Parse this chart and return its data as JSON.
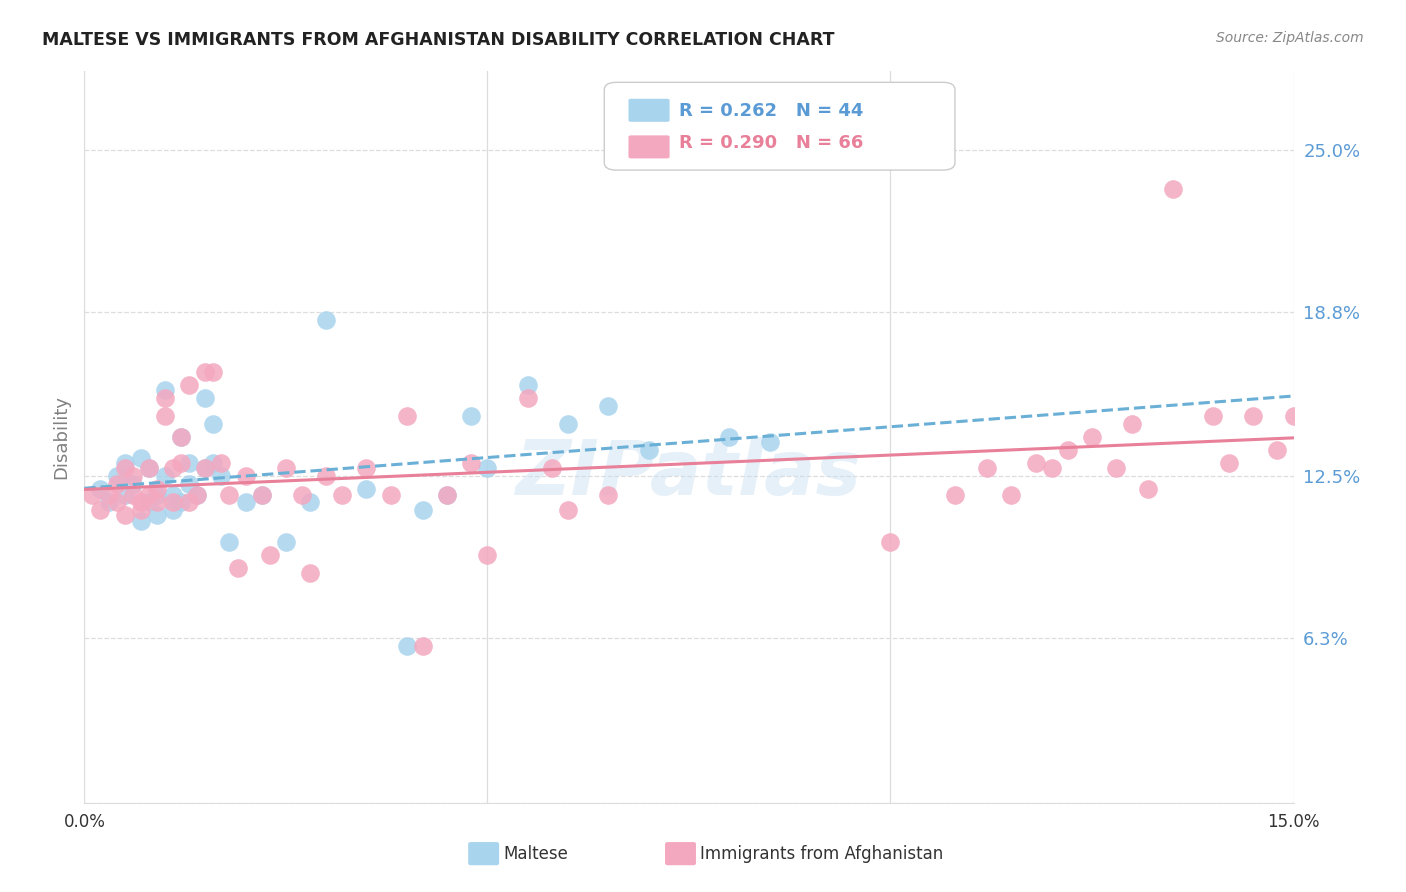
{
  "title": "MALTESE VS IMMIGRANTS FROM AFGHANISTAN DISABILITY CORRELATION CHART",
  "source": "Source: ZipAtlas.com",
  "ylabel": "Disability",
  "ytick_labels": [
    "25.0%",
    "18.8%",
    "12.5%",
    "6.3%"
  ],
  "ytick_values": [
    0.25,
    0.188,
    0.125,
    0.063
  ],
  "xlim": [
    0.0,
    0.15
  ],
  "ylim": [
    0.0,
    0.28
  ],
  "legend1_r": "0.262",
  "legend1_n": "44",
  "legend2_r": "0.290",
  "legend2_n": "66",
  "legend_label1": "Maltese",
  "legend_label2": "Immigrants from Afghanistan",
  "color_blue": "#a8d4ee",
  "color_pink": "#f4a8bf",
  "color_blue_line": "#6aafd6",
  "color_pink_line": "#e8809a",
  "color_blue_text": "#5b9bd5",
  "watermark": "ZIPatlas",
  "maltese_x": [
    0.002,
    0.003,
    0.004,
    0.005,
    0.005,
    0.006,
    0.007,
    0.007,
    0.008,
    0.008,
    0.009,
    0.009,
    0.01,
    0.01,
    0.011,
    0.011,
    0.012,
    0.012,
    0.013,
    0.013,
    0.014,
    0.015,
    0.015,
    0.016,
    0.016,
    0.017,
    0.018,
    0.02,
    0.022,
    0.025,
    0.028,
    0.03,
    0.035,
    0.04,
    0.042,
    0.045,
    0.048,
    0.05,
    0.055,
    0.06,
    0.065,
    0.07,
    0.08,
    0.085
  ],
  "maltese_y": [
    0.12,
    0.115,
    0.125,
    0.118,
    0.13,
    0.122,
    0.108,
    0.132,
    0.115,
    0.128,
    0.11,
    0.118,
    0.158,
    0.125,
    0.112,
    0.118,
    0.14,
    0.115,
    0.13,
    0.122,
    0.118,
    0.128,
    0.155,
    0.13,
    0.145,
    0.125,
    0.1,
    0.115,
    0.118,
    0.1,
    0.115,
    0.185,
    0.12,
    0.06,
    0.112,
    0.118,
    0.148,
    0.128,
    0.16,
    0.145,
    0.152,
    0.135,
    0.14,
    0.138
  ],
  "afghan_x": [
    0.001,
    0.002,
    0.003,
    0.004,
    0.004,
    0.005,
    0.005,
    0.006,
    0.006,
    0.007,
    0.007,
    0.008,
    0.008,
    0.009,
    0.009,
    0.01,
    0.01,
    0.011,
    0.011,
    0.012,
    0.012,
    0.013,
    0.013,
    0.014,
    0.015,
    0.015,
    0.016,
    0.017,
    0.018,
    0.019,
    0.02,
    0.022,
    0.023,
    0.025,
    0.027,
    0.028,
    0.03,
    0.032,
    0.035,
    0.038,
    0.04,
    0.042,
    0.045,
    0.048,
    0.05,
    0.055,
    0.058,
    0.06,
    0.065,
    0.1,
    0.108,
    0.112,
    0.115,
    0.118,
    0.12,
    0.122,
    0.125,
    0.128,
    0.13,
    0.132,
    0.135,
    0.14,
    0.142,
    0.145,
    0.148,
    0.15
  ],
  "afghan_y": [
    0.118,
    0.112,
    0.118,
    0.115,
    0.122,
    0.11,
    0.128,
    0.118,
    0.125,
    0.112,
    0.115,
    0.128,
    0.118,
    0.12,
    0.115,
    0.155,
    0.148,
    0.115,
    0.128,
    0.13,
    0.14,
    0.115,
    0.16,
    0.118,
    0.165,
    0.128,
    0.165,
    0.13,
    0.118,
    0.09,
    0.125,
    0.118,
    0.095,
    0.128,
    0.118,
    0.088,
    0.125,
    0.118,
    0.128,
    0.118,
    0.148,
    0.06,
    0.118,
    0.13,
    0.095,
    0.155,
    0.128,
    0.112,
    0.118,
    0.1,
    0.118,
    0.128,
    0.118,
    0.13,
    0.128,
    0.135,
    0.14,
    0.128,
    0.145,
    0.12,
    0.235,
    0.148,
    0.13,
    0.148,
    0.135,
    0.148
  ]
}
